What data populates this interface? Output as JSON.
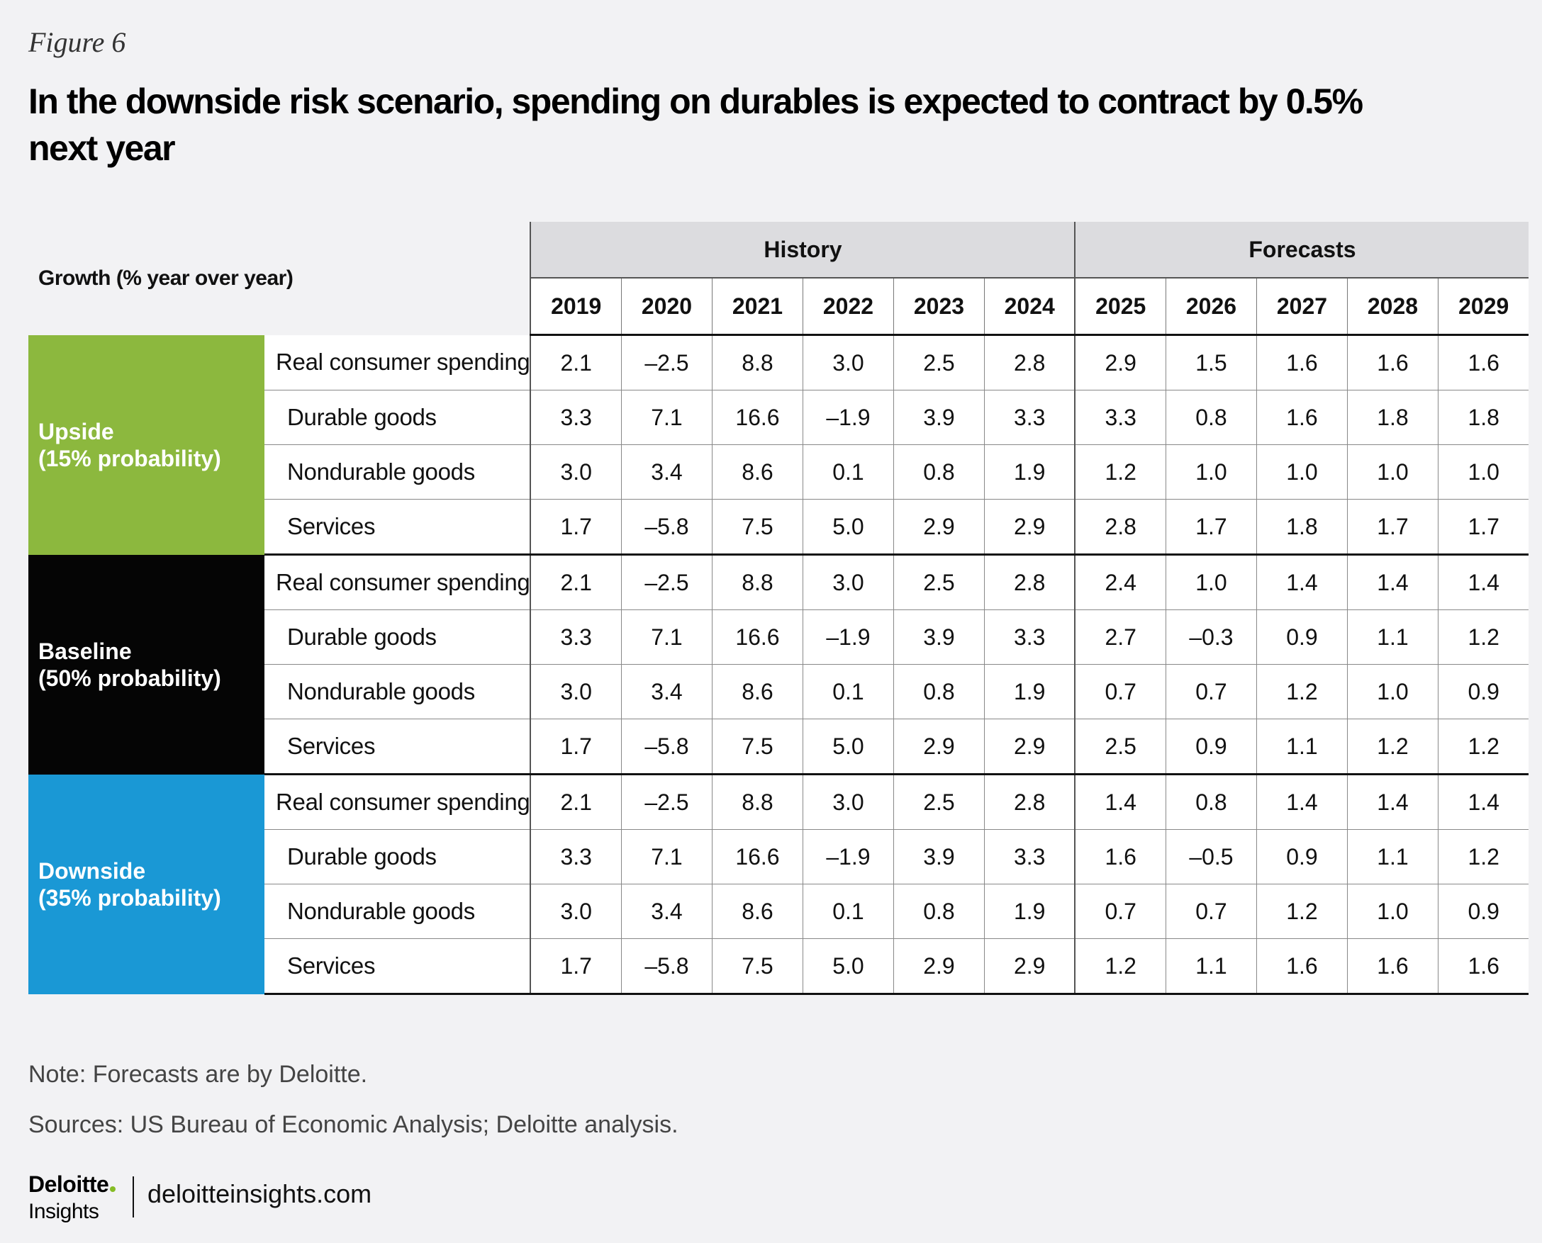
{
  "figure_label": "Figure 6",
  "title": "In the downside risk scenario, spending on durables is expected to contract by 0.5% next year",
  "note": "Note: Forecasts are by Deloitte.",
  "sources": "Sources: US Bureau of Economic Analysis; Deloitte analysis.",
  "footer": {
    "brand": "Deloitte",
    "brand_sub": "Insights",
    "site": "deloitteinsights.com"
  },
  "colors": {
    "upside": "#8cb83e",
    "baseline": "#050505",
    "downside": "#1a98d5",
    "header_band": "#dcdcdf",
    "background": "#f2f2f4"
  },
  "chart_data": {
    "type": "table",
    "title": "In the downside risk scenario, spending on durables is expected to contract by 0.5% next year",
    "stub_header": "Growth (% year over year)",
    "column_groups": [
      {
        "label": "History",
        "years": [
          "2019",
          "2020",
          "2021",
          "2022",
          "2023",
          "2024"
        ]
      },
      {
        "label": "Forecasts",
        "years": [
          "2025",
          "2026",
          "2027",
          "2028",
          "2029"
        ]
      }
    ],
    "scenarios": [
      {
        "key": "upside",
        "label_line1": "Upside",
        "label_line2": "(15% probability)",
        "rows": [
          {
            "label": "Real consumer spending",
            "values": [
              "2.1",
              "–2.5",
              "8.8",
              "3.0",
              "2.5",
              "2.8",
              "2.9",
              "1.5",
              "1.6",
              "1.6",
              "1.6"
            ]
          },
          {
            "label": "Durable goods",
            "values": [
              "3.3",
              "7.1",
              "16.6",
              "–1.9",
              "3.9",
              "3.3",
              "3.3",
              "0.8",
              "1.6",
              "1.8",
              "1.8"
            ]
          },
          {
            "label": "Nondurable goods",
            "values": [
              "3.0",
              "3.4",
              "8.6",
              "0.1",
              "0.8",
              "1.9",
              "1.2",
              "1.0",
              "1.0",
              "1.0",
              "1.0"
            ]
          },
          {
            "label": "Services",
            "values": [
              "1.7",
              "–5.8",
              "7.5",
              "5.0",
              "2.9",
              "2.9",
              "2.8",
              "1.7",
              "1.8",
              "1.7",
              "1.7"
            ]
          }
        ]
      },
      {
        "key": "baseline",
        "label_line1": "Baseline",
        "label_line2": "(50% probability)",
        "rows": [
          {
            "label": "Real consumer spending",
            "values": [
              "2.1",
              "–2.5",
              "8.8",
              "3.0",
              "2.5",
              "2.8",
              "2.4",
              "1.0",
              "1.4",
              "1.4",
              "1.4"
            ]
          },
          {
            "label": "Durable goods",
            "values": [
              "3.3",
              "7.1",
              "16.6",
              "–1.9",
              "3.9",
              "3.3",
              "2.7",
              "–0.3",
              "0.9",
              "1.1",
              "1.2"
            ]
          },
          {
            "label": "Nondurable goods",
            "values": [
              "3.0",
              "3.4",
              "8.6",
              "0.1",
              "0.8",
              "1.9",
              "0.7",
              "0.7",
              "1.2",
              "1.0",
              "0.9"
            ]
          },
          {
            "label": "Services",
            "values": [
              "1.7",
              "–5.8",
              "7.5",
              "5.0",
              "2.9",
              "2.9",
              "2.5",
              "0.9",
              "1.1",
              "1.2",
              "1.2"
            ]
          }
        ]
      },
      {
        "key": "downside",
        "label_line1": "Downside",
        "label_line2": "(35% probability)",
        "rows": [
          {
            "label": "Real consumer spending",
            "values": [
              "2.1",
              "–2.5",
              "8.8",
              "3.0",
              "2.5",
              "2.8",
              "1.4",
              "0.8",
              "1.4",
              "1.4",
              "1.4"
            ]
          },
          {
            "label": "Durable goods",
            "values": [
              "3.3",
              "7.1",
              "16.6",
              "–1.9",
              "3.9",
              "3.3",
              "1.6",
              "–0.5",
              "0.9",
              "1.1",
              "1.2"
            ]
          },
          {
            "label": "Nondurable goods",
            "values": [
              "3.0",
              "3.4",
              "8.6",
              "0.1",
              "0.8",
              "1.9",
              "0.7",
              "0.7",
              "1.2",
              "1.0",
              "0.9"
            ]
          },
          {
            "label": "Services",
            "values": [
              "1.7",
              "–5.8",
              "7.5",
              "5.0",
              "2.9",
              "2.9",
              "1.2",
              "1.1",
              "1.6",
              "1.6",
              "1.6"
            ]
          }
        ]
      }
    ]
  }
}
